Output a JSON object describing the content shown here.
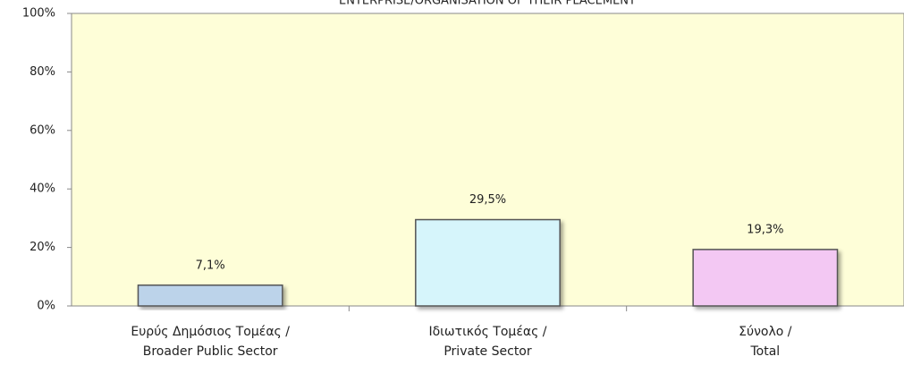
{
  "chart_data": {
    "type": "bar",
    "title": "ENTERPRISE/ORGANISATION OF THEIR PLACEMENT",
    "categories": [
      "Ευρύς Δημόσιος Τομέας /\nBroader Public Sector",
      "Ιδιωτικός Τομέας /\nPrivate Sector",
      "Σύνολο /\nTotal"
    ],
    "values": [
      7.1,
      29.5,
      19.3
    ],
    "value_labels": [
      "7,1%",
      "29,5%",
      "19,3%"
    ],
    "colors": [
      "#bcd3ea",
      "#d6f5fb",
      "#f3c8f3"
    ],
    "ylim": [
      0,
      100
    ],
    "yticks": [
      {
        "value": 0,
        "label": "0%"
      },
      {
        "value": 20,
        "label": "20%"
      },
      {
        "value": 40,
        "label": "40%"
      },
      {
        "value": 60,
        "label": "60%"
      },
      {
        "value": 80,
        "label": "80%"
      },
      {
        "value": 100,
        "label": "100%"
      }
    ],
    "plot_background": "#fefed8"
  }
}
